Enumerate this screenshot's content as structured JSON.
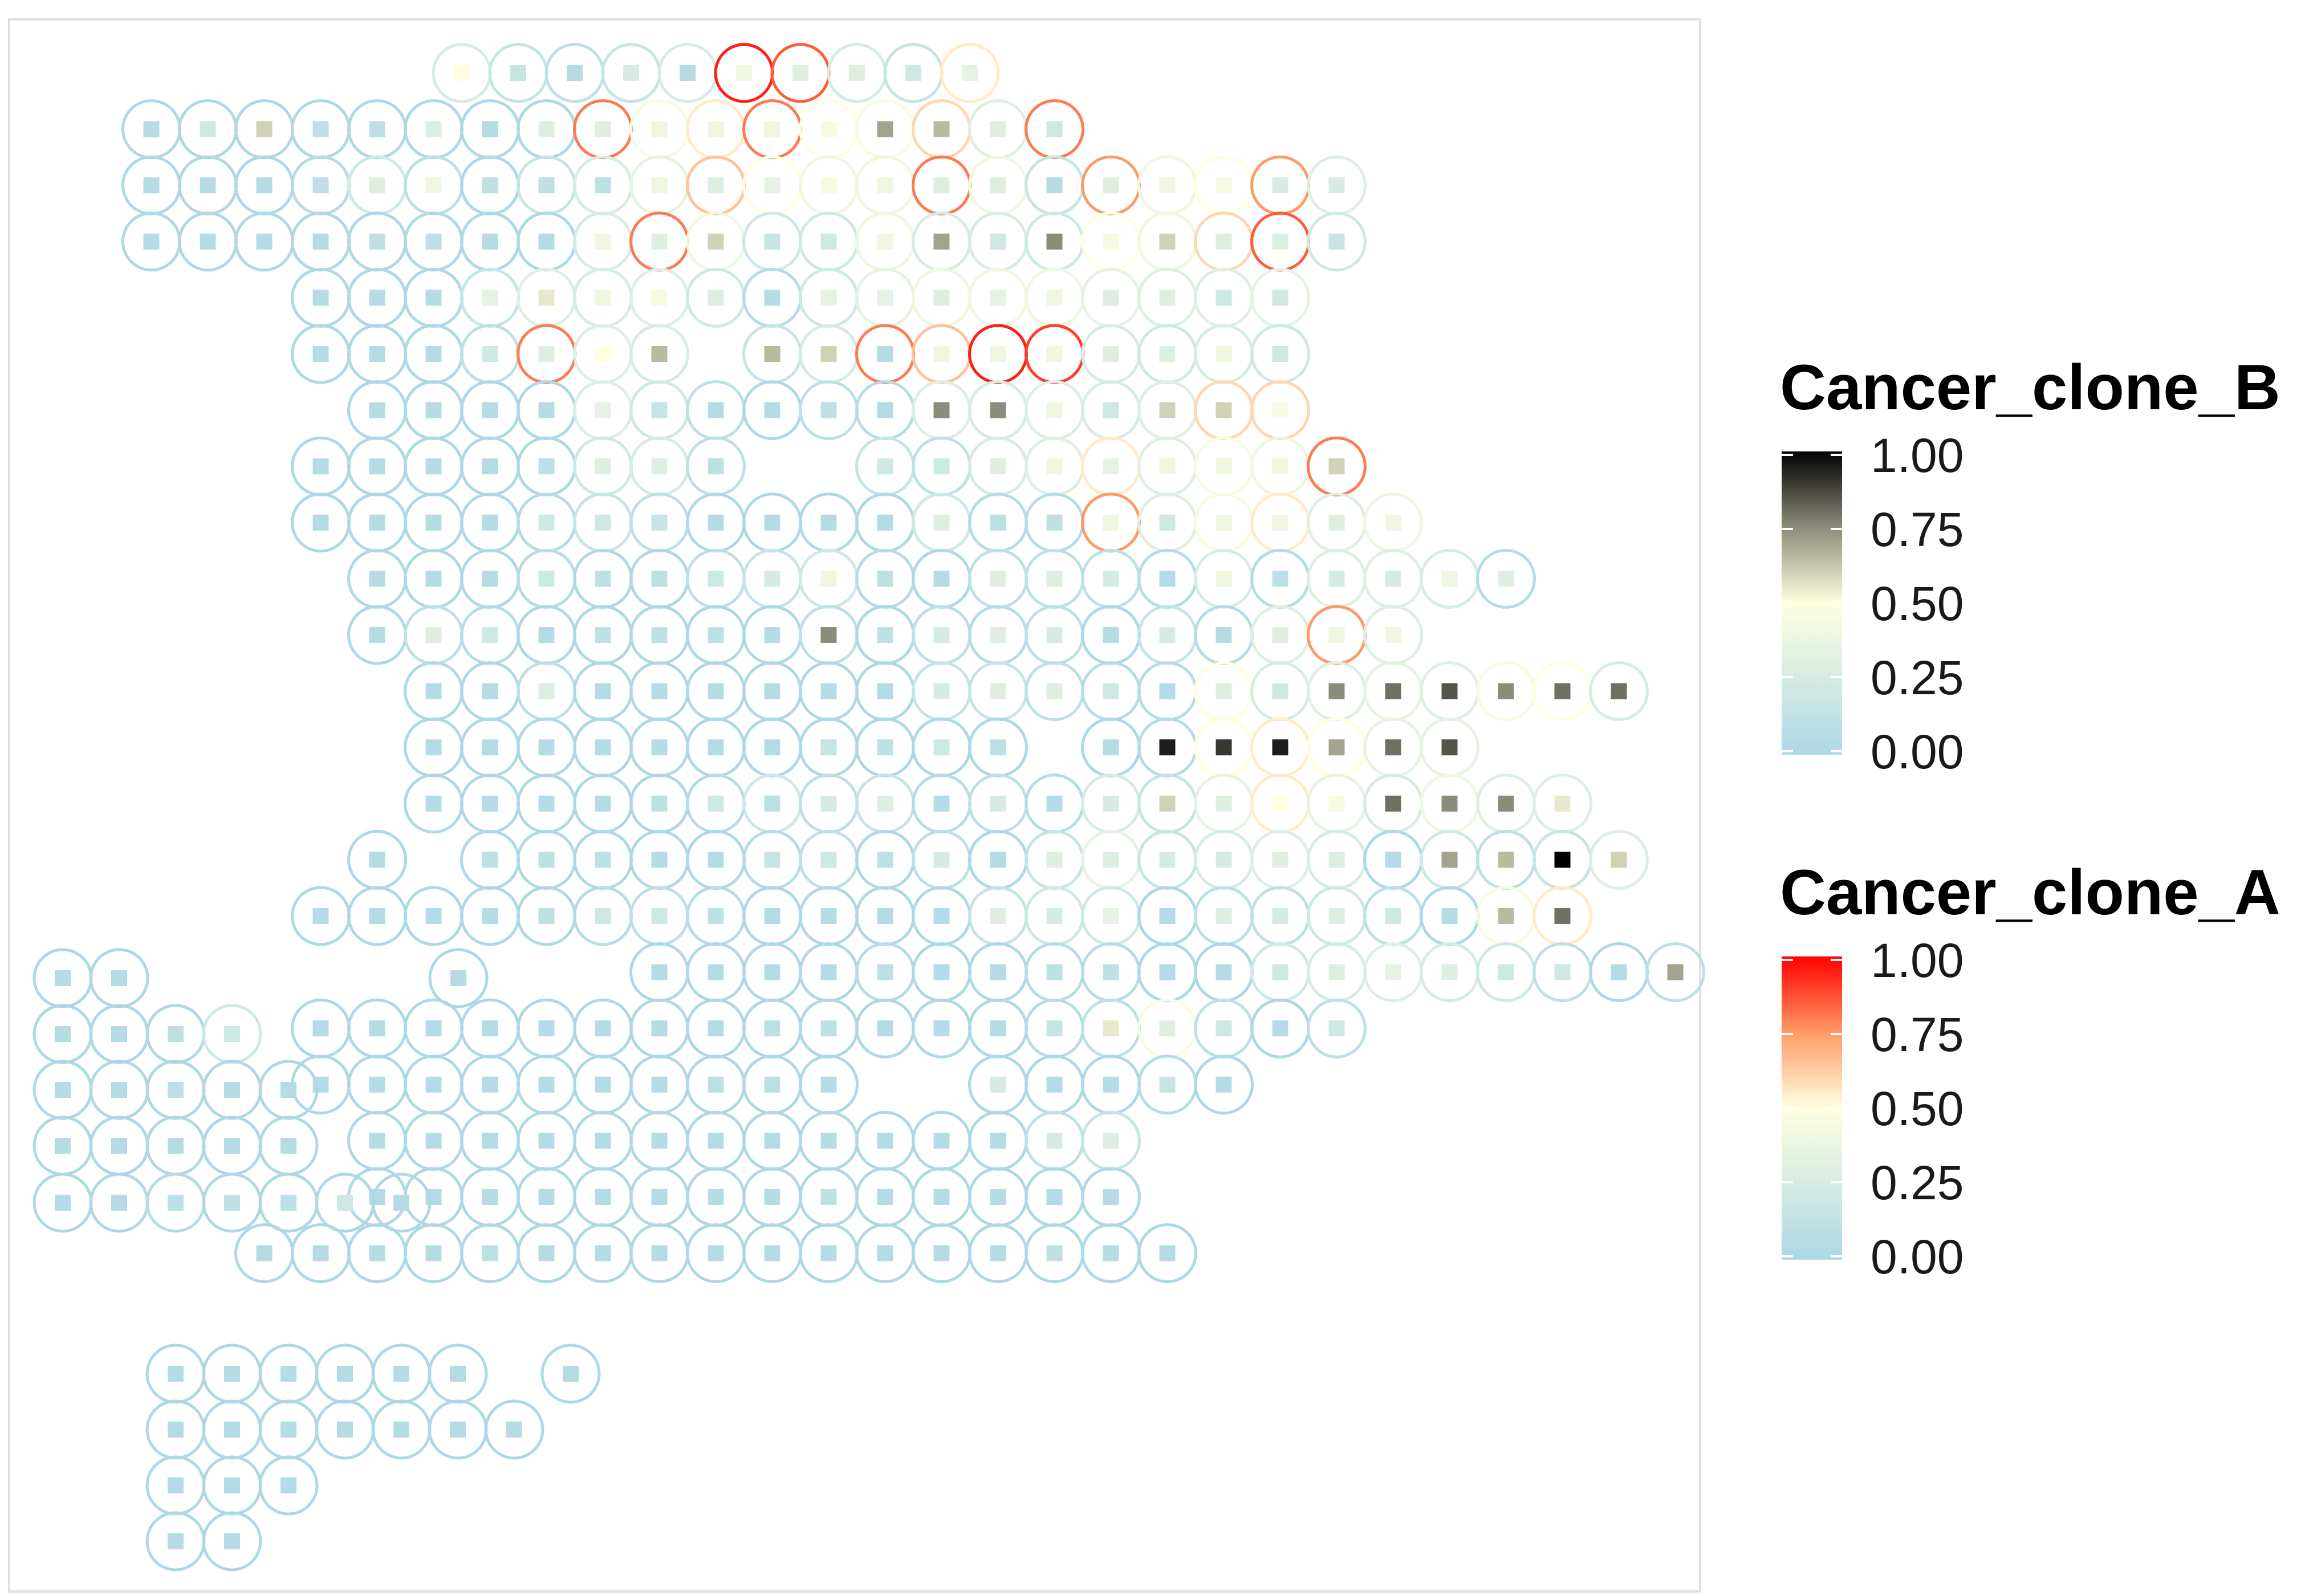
{
  "chart_data": {
    "type": "scatter",
    "title": "",
    "xlabel": "",
    "ylabel": "",
    "x_range": [
      -21.5,
      7.8
    ],
    "y_range": [
      -21.2,
      0.5
    ],
    "grid": false,
    "legend_placement": "right",
    "encoding": {
      "ring_color": "Cancer_clone_A",
      "square_color": "Cancer_clone_B"
    },
    "legends": [
      {
        "name": "Cancer_clone_B",
        "ticks": [
          "1.00",
          "0.75",
          "0.50",
          "0.25",
          "0.00"
        ],
        "tick_values": [
          1.0,
          0.75,
          0.5,
          0.25,
          0.0
        ],
        "stops": [
          {
            "v": 0.0,
            "color": "#add8e6"
          },
          {
            "v": 0.5,
            "color": "#ffffe0"
          },
          {
            "v": 0.75,
            "color": "#8c8c7a"
          },
          {
            "v": 1.0,
            "color": "#000000"
          }
        ]
      },
      {
        "name": "Cancer_clone_A",
        "ticks": [
          "1.00",
          "0.75",
          "0.50",
          "0.25",
          "0.00"
        ],
        "tick_values": [
          1.0,
          0.75,
          0.5,
          0.25,
          0.0
        ],
        "stops": [
          {
            "v": 0.0,
            "color": "#add8e6"
          },
          {
            "v": 0.5,
            "color": "#ffffe0"
          },
          {
            "v": 0.75,
            "color": "#ff9966"
          },
          {
            "v": 1.0,
            "color": "#ff0000"
          }
        ]
      }
    ],
    "rows": [
      {
        "y": 0,
        "x0": -12,
        "a": [
          0.25,
          0.15,
          0.1,
          0.15,
          0.25,
          0.95,
          0.85,
          0.25,
          0.15,
          0.55
        ],
        "b": [
          0.5,
          0.15,
          0.05,
          0.25,
          0.05,
          0.4,
          0.3,
          0.3,
          0.2,
          0.35
        ]
      },
      {
        "y": -1,
        "x0": -17.5,
        "a": [
          0,
          0,
          0,
          0,
          0,
          0,
          0,
          0,
          0.8,
          0.45,
          0.55,
          0.8,
          0.5,
          0.45,
          0.6,
          0.3,
          0.8
        ],
        "b": [
          0.05,
          0.2,
          0.6,
          0.1,
          0.1,
          0.3,
          0.05,
          0.3,
          0.3,
          0.4,
          0.4,
          0.4,
          0.45,
          0.7,
          0.65,
          0.3,
          0.2
        ]
      },
      {
        "y": -2,
        "x0": -17.5,
        "a": [
          0,
          0,
          0,
          0.05,
          0.2,
          0.1,
          0,
          0.15,
          0.25,
          0.35,
          0.65,
          0.5,
          0.4,
          0.4,
          0.8,
          0.4,
          0.15,
          0.75,
          0.4,
          0.5,
          0.75,
          0.3
        ],
        "b": [
          0.05,
          0.05,
          0.05,
          0.1,
          0.3,
          0.4,
          0.1,
          0.1,
          0.1,
          0.4,
          0.3,
          0.35,
          0.45,
          0.4,
          0.3,
          0.3,
          0.05,
          0.3,
          0.4,
          0.45,
          0.25,
          0.25
        ]
      },
      {
        "y": -3,
        "x0": -17.5,
        "a": [
          0,
          0,
          0,
          0,
          0,
          0,
          0,
          0,
          0.25,
          0.8,
          0.4,
          0.2,
          0.2,
          0.4,
          0.25,
          0.25,
          0.2,
          0.5,
          0.4,
          0.6,
          0.85,
          0.2
        ],
        "b": [
          0.05,
          0.05,
          0.05,
          0.05,
          0.1,
          0.1,
          0.05,
          0.05,
          0.4,
          0.3,
          0.6,
          0.15,
          0.2,
          0.4,
          0.7,
          0.2,
          0.75,
          0.45,
          0.6,
          0.3,
          0.3,
          0.15
        ]
      },
      {
        "y": -4,
        "x0": -14.5,
        "a": [
          0,
          0,
          0,
          0.15,
          0.3,
          0.25,
          0.3,
          0.2,
          0.05,
          0.2,
          0.35,
          0.4,
          0.4,
          0.4,
          0.35,
          0.3,
          0.3,
          0.35
        ],
        "b": [
          0.05,
          0.05,
          0.05,
          0.35,
          0.55,
          0.4,
          0.45,
          0.3,
          0.05,
          0.35,
          0.35,
          0.3,
          0.35,
          0.4,
          0.3,
          0.3,
          0.2,
          0.2
        ]
      },
      {
        "y": -5,
        "x0": -14.5,
        "a": [
          0,
          0,
          0,
          0.1,
          0.8,
          0.3,
          0.25,
          null,
          0.15,
          0.25,
          0.8,
          0.65,
          0.95,
          0.9,
          0.25,
          0.2,
          0.25,
          0.2
        ],
        "b": [
          0.05,
          0.05,
          0.05,
          0.2,
          0.3,
          0.5,
          0.65,
          null,
          0.65,
          0.6,
          0.05,
          0.4,
          0.4,
          0.4,
          0.3,
          0.3,
          0.4,
          0.2
        ]
      },
      {
        "y": -6,
        "x0": -13.5,
        "a": [
          0,
          0,
          0,
          0,
          0.3,
          0.2,
          0.1,
          0,
          0.1,
          0.05,
          0.3,
          0.25,
          0.3,
          0.25,
          0.3,
          0.6,
          0.6
        ],
        "b": [
          0.05,
          0.05,
          0.05,
          0.05,
          0.35,
          0.15,
          0.05,
          0.05,
          0.1,
          0.05,
          0.75,
          0.75,
          0.4,
          0.2,
          0.6,
          0.6,
          0.45
        ]
      },
      {
        "y": -7,
        "x0": -14.5,
        "a": [
          0,
          0,
          0,
          0,
          0,
          0.2,
          0.25,
          0.1,
          null,
          null,
          0.15,
          0.1,
          0.25,
          0.3,
          0.55,
          0.3,
          0.45,
          0.4,
          0.8
        ],
        "b": [
          0.05,
          0.05,
          0.05,
          0.05,
          0.1,
          0.3,
          0.3,
          0.1,
          null,
          null,
          0.2,
          0.2,
          0.3,
          0.4,
          0.35,
          0.4,
          0.4,
          0.4,
          0.6
        ]
      },
      {
        "y": -8,
        "x0": -14.5,
        "a": [
          0,
          0,
          0,
          0,
          0.05,
          0.15,
          0.1,
          0,
          0,
          0,
          0,
          0.2,
          0.05,
          0.05,
          0.75,
          0.3,
          0.45,
          0.55,
          0.3,
          0.4
        ],
        "b": [
          0.05,
          0.05,
          0.05,
          0.05,
          0.2,
          0.2,
          0.15,
          0.05,
          0.05,
          0.05,
          0.05,
          0.3,
          0.1,
          0.1,
          0.4,
          0.2,
          0.4,
          0.4,
          0.3,
          0.4
        ]
      },
      {
        "y": -9,
        "x0": -13.5,
        "a": [
          0,
          0,
          0,
          0.05,
          0,
          0,
          0.1,
          0.15,
          0.2,
          0.05,
          0,
          0.1,
          0.1,
          0.1,
          0.05,
          0.25,
          0.05,
          0.3,
          0.3,
          0.25,
          0.05
        ],
        "b": [
          0.05,
          0.05,
          0.05,
          0.2,
          0.1,
          0.1,
          0.2,
          0.25,
          0.4,
          0.1,
          0.05,
          0.3,
          0.3,
          0.25,
          0.05,
          0.4,
          0.1,
          0.25,
          0.25,
          0.4,
          0.3
        ]
      },
      {
        "y": -10,
        "x0": -13.5,
        "a": [
          0,
          0.1,
          0.05,
          0,
          0,
          0,
          0,
          0,
          0.1,
          0,
          0.1,
          0.05,
          0.1,
          0,
          0.15,
          0.05,
          0.3,
          0.75,
          0.3
        ],
        "b": [
          0.05,
          0.3,
          0.2,
          0.05,
          0.1,
          0.1,
          0.1,
          0.05,
          0.75,
          0.1,
          0.25,
          0.3,
          0.25,
          0.05,
          0.25,
          0.05,
          0.3,
          0.4,
          0.4
        ]
      },
      {
        "y": -11,
        "x0": -12.5,
        "a": [
          0,
          0,
          0.1,
          0,
          0,
          0,
          0,
          0,
          0,
          0.15,
          0.15,
          0.1,
          0.05,
          0.05,
          0.5,
          0.25,
          0.3,
          0.35,
          0.3,
          0.45,
          0.5,
          0.25
        ],
        "b": [
          0.05,
          0.05,
          0.3,
          0.05,
          0.05,
          0.05,
          0.05,
          0.05,
          0.05,
          0.25,
          0.3,
          0.3,
          0.2,
          0.05,
          0.3,
          0.2,
          0.75,
          0.8,
          0.85,
          0.75,
          0.8,
          0.8
        ]
      },
      {
        "y": -12,
        "x0": -12.5,
        "a": [
          0,
          0,
          0,
          0,
          0,
          0,
          0,
          0,
          0,
          0,
          0,
          null,
          0,
          0.05,
          0.5,
          0.55,
          0.5,
          0.35,
          0.35
        ],
        "b": [
          0.05,
          0.05,
          0.05,
          0.05,
          0.05,
          0.05,
          0.05,
          0.15,
          0.1,
          0.2,
          0.1,
          null,
          0.05,
          0.95,
          0.9,
          0.95,
          0.7,
          0.8,
          0.85
        ],
        "x0b": -12.5
      },
      {
        "y": -13,
        "x0": -12.5,
        "a": [
          0,
          0,
          0,
          0,
          0,
          0.05,
          0.2,
          0.1,
          0.15,
          0.05,
          0.1,
          0.05,
          0.25,
          0.15,
          0.35,
          0.55,
          0.35,
          0.25,
          0.4,
          0.3,
          0.3
        ],
        "b": [
          0.05,
          0.05,
          0.05,
          0.05,
          0.1,
          0.2,
          0.1,
          0.25,
          0.3,
          0.05,
          0.25,
          0.05,
          0.25,
          0.6,
          0.3,
          0.5,
          0.45,
          0.8,
          0.75,
          0.75,
          0.55
        ]
      },
      {
        "y": -14,
        "x0": -13.5,
        "a": [
          0,
          null,
          0,
          0,
          0,
          0,
          0,
          0.05,
          0.1,
          0,
          0.1,
          0,
          0.15,
          0.35,
          0.15,
          0.25,
          0.3,
          0.25,
          0,
          0.2,
          0.1,
          0.15,
          0.3
        ],
        "b": [
          0.05,
          null,
          0.1,
          0.1,
          0.1,
          0.05,
          0.05,
          0.15,
          0.2,
          0.1,
          0.25,
          0.05,
          0.3,
          0.3,
          0.25,
          0.25,
          0.3,
          0.3,
          0.05,
          0.7,
          0.65,
          1.0,
          0.6
        ]
      },
      {
        "y": -15,
        "x0": -14.5,
        "a": [
          0,
          0,
          0,
          0,
          0,
          0.05,
          0.1,
          0.05,
          0,
          0,
          0,
          0,
          0.15,
          0.2,
          0.2,
          0,
          0.1,
          0.1,
          0.2,
          0.1,
          0,
          0.45,
          0.55
        ],
        "b": [
          0.05,
          0.05,
          0.05,
          0.05,
          0.1,
          0.2,
          0.2,
          0.1,
          0.05,
          0.05,
          0.05,
          0.05,
          0.3,
          0.25,
          0.35,
          0.05,
          0.3,
          0.25,
          0.3,
          0.2,
          0.05,
          0.65,
          0.8
        ]
      },
      {
        "y": -16,
        "x0": -8.5,
        "a": [
          0,
          0,
          0,
          0,
          0.05,
          0,
          0,
          0.05,
          0.05,
          0,
          0,
          0.2,
          0.25,
          0.3,
          0.25,
          0.2,
          0.1,
          0,
          0.1
        ],
        "b": [
          0.05,
          0.05,
          0.05,
          0.05,
          0.1,
          0.05,
          0.05,
          0.1,
          0.1,
          0.05,
          0.05,
          0.2,
          0.3,
          0.35,
          0.3,
          0.2,
          0.2,
          0.05,
          0.7
        ]
      }
    ],
    "rows_tail": [
      {
        "y": -17,
        "x0": -14.5,
        "a": [
          0,
          0,
          0,
          0,
          0,
          0,
          0,
          0,
          0,
          0,
          0,
          0,
          0,
          0.05,
          0.1,
          0.45,
          0.1,
          0,
          0.1
        ],
        "b": [
          0.05,
          0.05,
          0.05,
          0.05,
          0.05,
          0.05,
          0.05,
          0.05,
          0.1,
          0.1,
          0.05,
          0.05,
          0.05,
          0.15,
          0.55,
          0.3,
          0.2,
          0.05,
          0.2
        ]
      },
      {
        "y": -18,
        "x0": -14.5,
        "a": [
          0,
          0,
          0,
          0,
          0,
          0,
          0,
          0,
          0,
          0,
          null,
          null,
          0,
          0,
          0,
          0.05,
          0
        ],
        "b": [
          0.05,
          0.05,
          0.05,
          0.05,
          0.05,
          0.05,
          0.05,
          0.1,
          0.1,
          0.05,
          null,
          null,
          0.25,
          0.05,
          0.05,
          0.15,
          0.05
        ]
      },
      {
        "y": -19,
        "x0": -13.5,
        "a": [
          0,
          0,
          0,
          0,
          0,
          0,
          0,
          0,
          0,
          0,
          0,
          0,
          0.1,
          0.15
        ],
        "b": [
          0.05,
          0.05,
          0.05,
          0.05,
          0.05,
          0.05,
          0.05,
          0.05,
          0.05,
          0.05,
          0.05,
          0.05,
          0.25,
          0.3
        ]
      },
      {
        "y": -20,
        "x0": -13.5,
        "a": [
          0,
          0,
          0,
          0,
          0,
          0,
          0,
          0,
          0,
          0,
          0,
          0,
          0,
          0
        ],
        "b": [
          0.05,
          0.05,
          0.05,
          0.05,
          0.05,
          0.05,
          0.05,
          0.05,
          0.1,
          0.05,
          0.05,
          0.05,
          0.05,
          0.05
        ]
      },
      {
        "y": -21,
        "x0": -15.5,
        "a": [
          0,
          0,
          0,
          0,
          0,
          0,
          0,
          0,
          0,
          0,
          0,
          0,
          0,
          0,
          0,
          0,
          0
        ],
        "b": [
          0.05,
          0.05,
          0.05,
          0.05,
          0.1,
          0.05,
          0.05,
          0.05,
          0.05,
          0.05,
          0.05,
          0.05,
          0.05,
          0.05,
          0.1,
          0.05,
          0.05
        ]
      }
    ],
    "islands": [
      {
        "y": -16,
        "x0": -20.5,
        "a": [
          0,
          0
        ],
        "b": [
          0.05,
          0.05
        ]
      },
      {
        "y": -16,
        "x0": -14.5,
        "a": [
          0
        ],
        "b": [
          0.05
        ]
      },
      {
        "y": -17,
        "x0": -20.5,
        "a": [
          0,
          0,
          0,
          0.2
        ],
        "b": [
          0.05,
          0.05,
          0.1,
          0.2
        ]
      },
      {
        "y": -18,
        "x0": -20.5,
        "a": [
          0,
          0,
          0,
          0,
          0
        ],
        "b": [
          0.05,
          0.05,
          0.1,
          0.05,
          0.05
        ]
      },
      {
        "y": -19,
        "x0": -20.5,
        "a": [
          0,
          0,
          0,
          0,
          0
        ],
        "b": [
          0.05,
          0.05,
          0.05,
          0.05,
          0.05
        ]
      },
      {
        "y": -20,
        "x0": -20.5,
        "a": [
          0,
          0,
          0.05,
          0,
          0,
          0,
          0
        ],
        "b": [
          0.05,
          0.05,
          0.1,
          0.1,
          0.1,
          0.2,
          0.05
        ]
      },
      {
        "y": -21,
        "x0": -19.5,
        "a": [],
        "b": []
      },
      {
        "y": -23,
        "x0": -18.5,
        "a": [
          0,
          0,
          0,
          0,
          0,
          0,
          null,
          0
        ],
        "b": [
          0.05,
          0.05,
          0.05,
          0.05,
          0.05,
          0.05,
          null,
          0.05
        ]
      },
      {
        "y": -24,
        "x0": -18.5,
        "a": [
          0,
          0,
          0,
          0,
          0,
          0,
          0
        ],
        "b": [
          0.05,
          0.05,
          0.05,
          0.05,
          0.05,
          0.05,
          0.05
        ]
      },
      {
        "y": -25,
        "x0": -18.5,
        "a": [
          0,
          0,
          0
        ],
        "b": [
          0.05,
          0.05,
          0.05
        ]
      },
      {
        "y": -26,
        "x0": -18.5,
        "a": [
          0,
          0
        ],
        "b": [
          0.05,
          0.05
        ]
      }
    ]
  }
}
